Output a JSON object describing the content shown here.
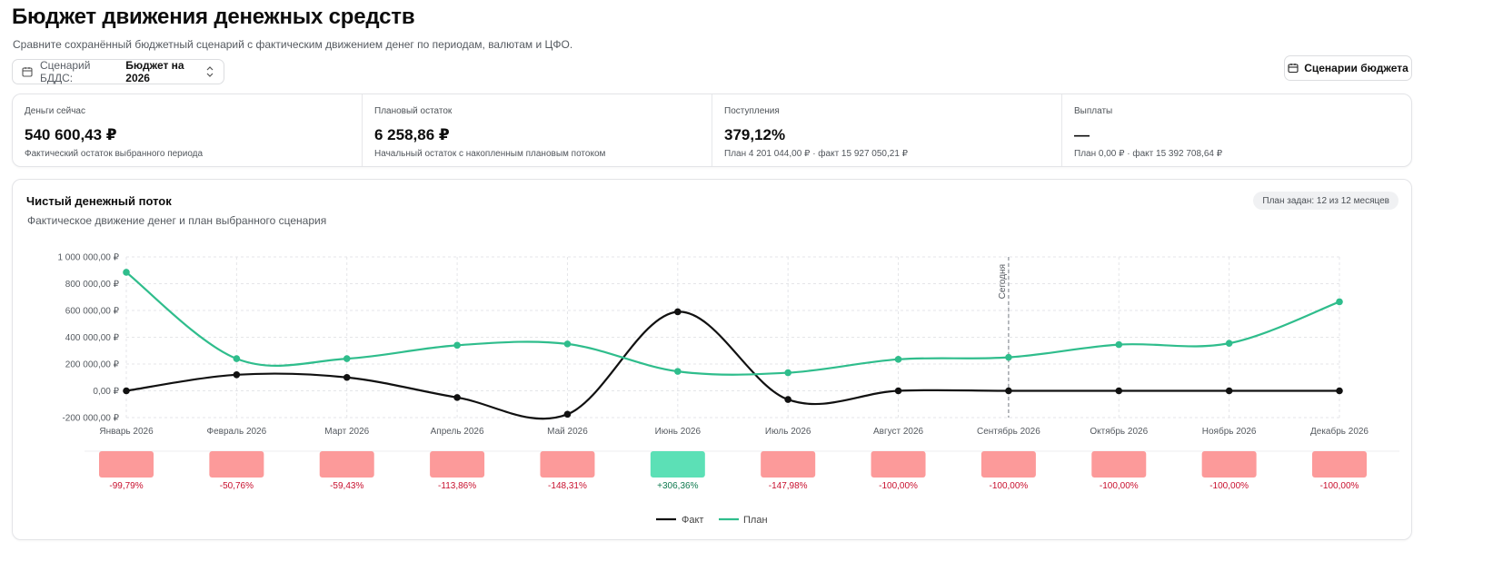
{
  "header": {
    "title": "Бюджет движения денежных средств",
    "subtitle": "Сравните сохранённый бюджетный сценарий с фактическим движением денег по периодам, валютам и ЦФО."
  },
  "scenario_select": {
    "label": "Сценарий БДДС:",
    "value": "Бюджет на 2026"
  },
  "scenarios_button": {
    "label": "Сценарии бюджета"
  },
  "stats": [
    {
      "title": "Деньги сейчас",
      "value": "540 600,43 ₽",
      "note": "Фактический остаток выбранного периода"
    },
    {
      "title": "Плановый остаток",
      "value": "6 258,86 ₽",
      "note": "Начальный остаток с накопленным плановым потоком"
    },
    {
      "title": "Поступления",
      "value": "379,12%",
      "note": "План 4 201 044,00 ₽ · факт 15 927 050,21 ₽"
    },
    {
      "title": "Выплаты",
      "value": "—",
      "note": "План 0,00 ₽ · факт 15 392 708,64 ₽"
    }
  ],
  "chart_card": {
    "title": "Чистый денежный поток",
    "subtitle": "Фактическое движение денег и план выбранного сценария",
    "plan_badge": "План задан: 12 из 12 месяцев",
    "today_label": "Сегодня"
  },
  "colors": {
    "fact": "#111111",
    "plan": "#2fbd8c",
    "negative_bar": "#fc9a9a",
    "positive_bar": "#5ce0b6",
    "negative_text": "#c8102e",
    "positive_text": "#0f7a4f"
  },
  "chart_data": {
    "type": "line",
    "categories": [
      "Январь 2026",
      "Февраль 2026",
      "Март 2026",
      "Апрель 2026",
      "Май 2026",
      "Июнь 2026",
      "Июль 2026",
      "Август 2026",
      "Сентябрь 2026",
      "Октябрь 2026",
      "Ноябрь 2026",
      "Декабрь 2026"
    ],
    "ylim": [
      -200000,
      1000000
    ],
    "yticks": [
      1000000,
      800000,
      600000,
      400000,
      200000,
      0,
      -200000
    ],
    "ytick_labels": [
      "1 000 000,00 ₽",
      "800 000,00 ₽",
      "600 000,00 ₽",
      "400 000,00 ₽",
      "200 000,00 ₽",
      "0,00 ₽",
      "-200 000,00 ₽"
    ],
    "grid": true,
    "today_category": "Сентябрь 2026",
    "series": [
      {
        "name": "Факт",
        "values": [
          0,
          120000,
          100000,
          -50000,
          -175000,
          590000,
          -65000,
          0,
          0,
          0,
          0,
          0
        ]
      },
      {
        "name": "План",
        "values": [
          885000,
          240000,
          240000,
          340000,
          350000,
          145000,
          135000,
          235000,
          250000,
          345000,
          355000,
          665000
        ]
      }
    ],
    "deviation": {
      "labels": [
        "-99,79%",
        "-50,76%",
        "-59,43%",
        "-113,86%",
        "-148,31%",
        "+306,36%",
        "-147,98%",
        "-100,00%",
        "-100,00%",
        "-100,00%",
        "-100,00%",
        "-100,00%"
      ],
      "positive": [
        false,
        false,
        false,
        false,
        false,
        true,
        false,
        false,
        false,
        false,
        false,
        false
      ]
    },
    "legend": [
      "Факт",
      "План"
    ],
    "legend_position": "bottom-center"
  }
}
